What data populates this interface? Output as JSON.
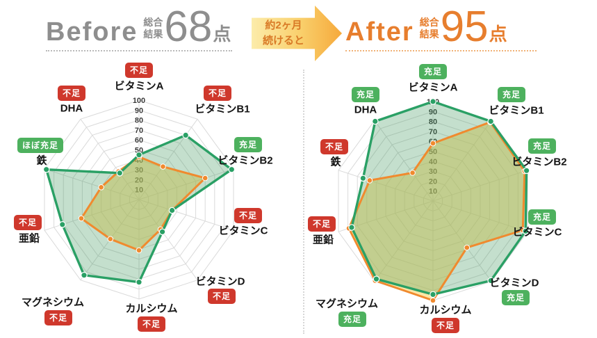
{
  "header": {
    "before": {
      "label": "Before",
      "sub1": "総合",
      "sub2": "結果",
      "score": "68",
      "unit": "点"
    },
    "arrow": {
      "line1": "約2ヶ月",
      "line2": "続けると"
    },
    "after": {
      "label": "After",
      "sub1": "総合",
      "sub2": "結果",
      "score": "95",
      "unit": "点"
    }
  },
  "colors": {
    "before_accent": "#8e8e8e",
    "after_accent": "#e77e2e",
    "badge_shortage": "#cf382c",
    "badge_sufficient": "#4db15e",
    "grid": "#dadada",
    "green_line": "#2aa065",
    "orange_line": "#f08a2e",
    "green_fill": "rgba(58,150,90,0.30)",
    "orange_fill": "rgba(250,211,92,0.55)"
  },
  "chart_data": [
    {
      "type": "radar",
      "panel": "Before",
      "rmax": 100,
      "ticks": [
        10,
        20,
        30,
        40,
        50,
        60,
        70,
        80,
        90,
        100
      ],
      "categories": [
        "ビタミンA",
        "ビタミンB1",
        "ビタミンB2",
        "ビタミンC",
        "ビタミンD",
        "カルシウム",
        "マグネシウム",
        "亜鉛",
        "鉄",
        "DHA"
      ],
      "badges": [
        {
          "label": "不足",
          "status": "shortage"
        },
        {
          "label": "不足",
          "status": "shortage"
        },
        {
          "label": "充足",
          "status": "sufficient"
        },
        {
          "label": "不足",
          "status": "shortage"
        },
        {
          "label": "不足",
          "status": "shortage"
        },
        {
          "label": "不足",
          "status": "shortage"
        },
        {
          "label": "不足",
          "status": "shortage"
        },
        {
          "label": "不足",
          "status": "shortage"
        },
        {
          "label": "ほぼ充足",
          "status": "sufficient"
        },
        {
          "label": "不足",
          "status": "shortage"
        }
      ],
      "series": [
        {
          "name": "green",
          "color": "#2aa065",
          "values": [
            45,
            80,
            98,
            35,
            40,
            83,
            94,
            81,
            98,
            33
          ]
        },
        {
          "name": "orange",
          "color": "#f08a2e",
          "values": [
            43,
            41,
            70,
            35,
            37,
            51,
            49,
            61,
            40,
            35
          ]
        }
      ]
    },
    {
      "type": "radar",
      "panel": "After",
      "rmax": 100,
      "ticks": [
        10,
        20,
        30,
        40,
        50,
        60,
        70,
        80,
        90,
        100
      ],
      "categories": [
        "ビタミンA",
        "ビタミンB1",
        "ビタミンB2",
        "ビタミンC",
        "ビタミンD",
        "カルシウム",
        "マグネシウム",
        "亜鉛",
        "鉄",
        "DHA"
      ],
      "badges": [
        {
          "label": "充足",
          "status": "sufficient"
        },
        {
          "label": "充足",
          "status": "sufficient"
        },
        {
          "label": "充足",
          "status": "sufficient"
        },
        {
          "label": "充足",
          "status": "sufficient"
        },
        {
          "label": "充足",
          "status": "sufficient"
        },
        {
          "label": "不足",
          "status": "shortage"
        },
        {
          "label": "充足",
          "status": "sufficient"
        },
        {
          "label": "不足",
          "status": "shortage"
        },
        {
          "label": "不足",
          "status": "shortage"
        },
        {
          "label": "充足",
          "status": "sufficient"
        }
      ],
      "series": [
        {
          "name": "green",
          "color": "#2aa065",
          "values": [
            100,
            99,
            99,
            98,
            99,
            94,
            97,
            86,
            74,
            99
          ]
        },
        {
          "name": "orange",
          "color": "#f08a2e",
          "values": [
            58,
            98,
            97,
            95,
            58,
            100,
            99,
            89,
            67,
            35
          ]
        }
      ]
    }
  ]
}
